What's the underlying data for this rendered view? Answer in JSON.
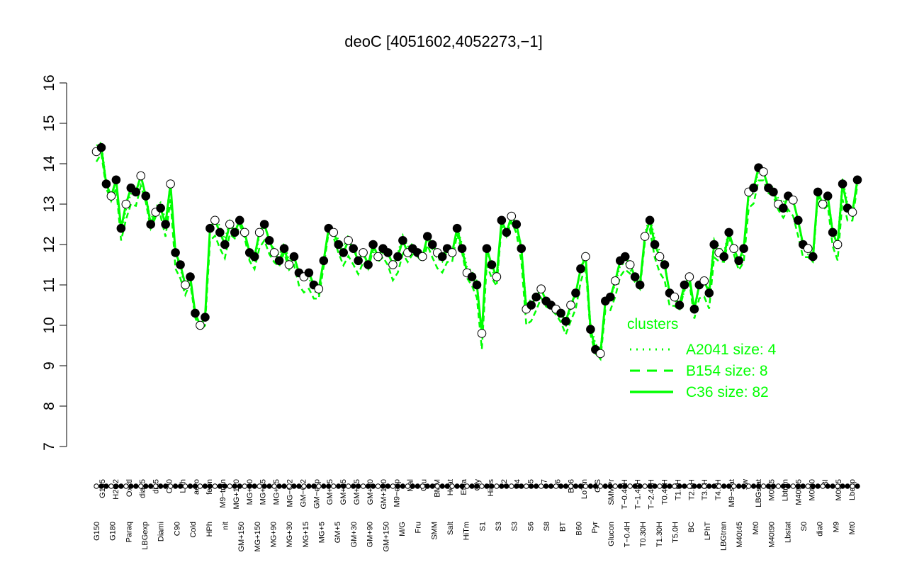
{
  "chart_data": {
    "type": "line",
    "title": "deoC [4051602,4052273,−1]",
    "xlabel": "",
    "ylabel": "",
    "ylim": [
      7,
      16
    ],
    "yticks": [
      7,
      8,
      9,
      10,
      11,
      12,
      13,
      14,
      15,
      16
    ],
    "grid": false,
    "legend_placement": "center-right",
    "legend": {
      "title": "clusters",
      "entries": [
        {
          "label": "A2041 size: 4",
          "style": "dotted"
        },
        {
          "label": "B154 size: 8",
          "style": "dashed"
        },
        {
          "label": "C36 size: 82",
          "style": "solid"
        }
      ]
    },
    "line_color": "#00ff00",
    "x_labels_top": [
      "G135",
      "H2O2",
      "Oxctl",
      "dia15",
      "dia5",
      "C30",
      "LPh",
      "aero",
      "ferm",
      "M9−tran",
      "MG+120",
      "MG+60",
      "MG+45",
      "MG+25",
      "MG−0.2",
      "GM−0.2",
      "GM−exp",
      "GM+15",
      "GM+25",
      "GM+45",
      "GM+60",
      "GM+120",
      "M9−exp",
      "Mal",
      "Glu",
      "BMM",
      "Heat",
      "Etha",
      "Gly",
      "HiOs",
      "S2",
      "S4",
      "S5",
      "S7",
      "S6",
      "B36",
      "LoTm",
      "G/S",
      "SMMPr",
      "T−0.40H",
      "T−1.40H",
      "T−2.40H",
      "T0.40H",
      "T1.0H",
      "T2.0H",
      "T3.0H",
      "T4.0H",
      "M9−stat",
      "Sw",
      "LBGstat",
      "M0t45",
      "Lbtran",
      "M40t45",
      "M0t90",
      "BI",
      "M0t45",
      "Lbexp"
    ],
    "x_labels_bottom": [
      "G150",
      "G180",
      "Paraq",
      "LBGexp",
      "Diami",
      "C90",
      "Cold",
      "HPh",
      "nit",
      "GM+150",
      "MG+150",
      "MG+90",
      "MG+30",
      "MG+15",
      "MG+5",
      "GM+5",
      "GM+30",
      "GM+90",
      "GM+150",
      "M/G",
      "Fru",
      "SMM",
      "Salt",
      "HiTm",
      "S1",
      "S3",
      "S3",
      "S6",
      "S8",
      "BT",
      "B60",
      "Pyr",
      "Glucon",
      "T−0.4H",
      "T0.30H",
      "T1.30H",
      "T5.0H",
      "BC",
      "LPhT",
      "LBGtran",
      "M40t45",
      "Mt0",
      "M40t90",
      "Lbstat",
      "S0",
      "dia0",
      "M9",
      "Mt0"
    ],
    "series": [
      {
        "name": "",
        "values": [
          14.3,
          14.4,
          13.5,
          13.2,
          13.6,
          12.4,
          13.0,
          13.4,
          13.3,
          13.7,
          13.2,
          12.5,
          12.8,
          12.9,
          12.5,
          13.5,
          11.8,
          11.5,
          11.0,
          11.2,
          10.3,
          10.0,
          10.2,
          12.4,
          12.6,
          12.3,
          12.0,
          12.5,
          12.3,
          12.6,
          12.3,
          11.8,
          11.7,
          12.3,
          12.5,
          12.1,
          11.8,
          11.6,
          11.9,
          11.5,
          11.7,
          11.3,
          11.2,
          11.3,
          11.0,
          10.9,
          11.6,
          12.4,
          12.3,
          12.0,
          11.8,
          12.1,
          11.9,
          11.6,
          11.8,
          11.5,
          12.0,
          11.7,
          11.9,
          11.8,
          11.5,
          11.7,
          12.1,
          11.8,
          11.9,
          11.8,
          11.7,
          12.2,
          12.0,
          11.8,
          11.7,
          11.9,
          11.8,
          12.4,
          11.9,
          11.3,
          11.2,
          11.0,
          9.8,
          11.9,
          11.5,
          11.2,
          12.6,
          12.3,
          12.7,
          12.5,
          11.9,
          10.4,
          10.5,
          10.7,
          10.9,
          10.6,
          10.5,
          10.4,
          10.3,
          10.1,
          10.5,
          10.8,
          11.4,
          11.7,
          9.9,
          9.4,
          9.3,
          10.6,
          10.7,
          11.1,
          11.6,
          11.7,
          11.5,
          11.2,
          11.0,
          12.2,
          12.6,
          12.0,
          11.7,
          11.5,
          10.8,
          10.7,
          10.5,
          11.0,
          11.2,
          10.4,
          11.0,
          11.1,
          10.8,
          12.0,
          11.8,
          11.7,
          12.3,
          11.9,
          11.6,
          11.9,
          13.3,
          13.4,
          13.9,
          13.8,
          13.4,
          13.3,
          13.0,
          12.9,
          13.2,
          13.1,
          12.6,
          12.0,
          11.9,
          11.7,
          13.3,
          13.0,
          13.2,
          12.3,
          12.0,
          13.5,
          12.9,
          12.8,
          13.6
        ]
      }
    ]
  }
}
